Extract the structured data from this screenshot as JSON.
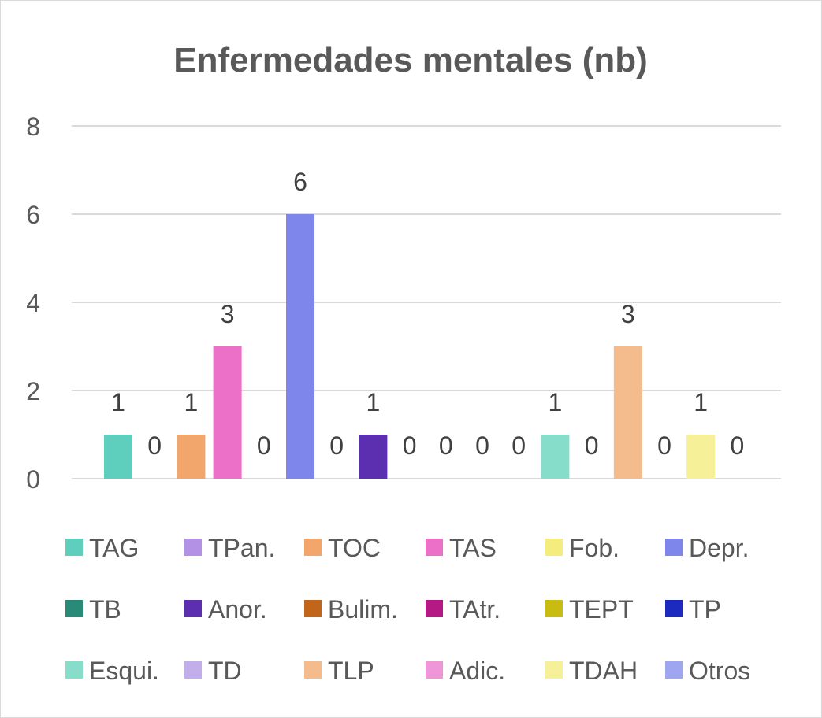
{
  "chart_data": {
    "type": "bar",
    "title": "Enfermedades mentales (nb)",
    "xlabel": "",
    "ylabel": "",
    "ylim": [
      0,
      8
    ],
    "yticks": [
      0,
      2,
      4,
      6,
      8
    ],
    "grid": true,
    "legend_position": "bottom",
    "series": [
      {
        "name": "TAG",
        "value": 1,
        "color": "#5ecfbc"
      },
      {
        "name": "TPan.",
        "value": 0,
        "color": "#b392e6"
      },
      {
        "name": "TOC",
        "value": 1,
        "color": "#f2a66b"
      },
      {
        "name": "TAS",
        "value": 3,
        "color": "#ec6fc8"
      },
      {
        "name": "Fob.",
        "value": 0,
        "color": "#f4ec7c"
      },
      {
        "name": "Depr.",
        "value": 6,
        "color": "#7e86ec"
      },
      {
        "name": "TB",
        "value": 0,
        "color": "#2a8a78"
      },
      {
        "name": "Anor.",
        "value": 1,
        "color": "#5c2eb0"
      },
      {
        "name": "Bulim.",
        "value": 0,
        "color": "#c0651a"
      },
      {
        "name": "TAtr.",
        "value": 0,
        "color": "#b51a84"
      },
      {
        "name": "TEPT",
        "value": 0,
        "color": "#c8bc12"
      },
      {
        "name": "TP",
        "value": 0,
        "color": "#1c2ac0"
      },
      {
        "name": "Esqui.",
        "value": 1,
        "color": "#86ddca"
      },
      {
        "name": "TD",
        "value": 0,
        "color": "#c3aeec"
      },
      {
        "name": "TLP",
        "value": 3,
        "color": "#f4bc8c"
      },
      {
        "name": "Adic.",
        "value": 0,
        "color": "#ee96d8"
      },
      {
        "name": "TDAH",
        "value": 1,
        "color": "#f6f098"
      },
      {
        "name": "Otros",
        "value": 0,
        "color": "#9ea6f0"
      }
    ]
  }
}
